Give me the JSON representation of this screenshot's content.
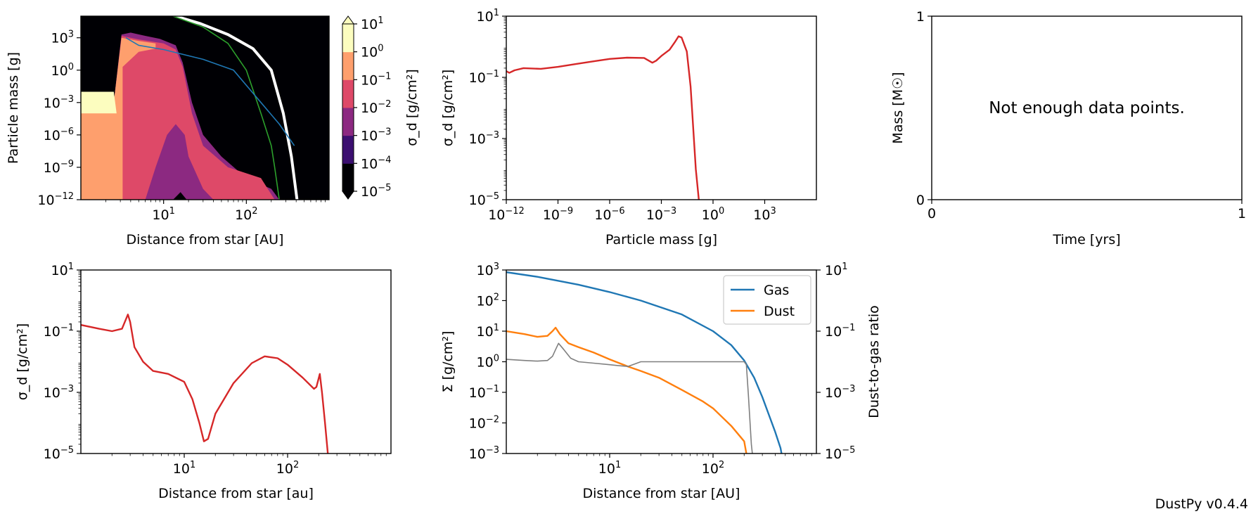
{
  "footer": "DustPy v0.4.4",
  "chart_data": [
    {
      "id": "p1",
      "type": "heatmap",
      "xlabel": "Distance from star [AU]",
      "ylabel": "Particle mass [g]",
      "xscale": "log",
      "yscale": "log",
      "xlim": [
        1.0,
        1000.0
      ],
      "ylim": [
        1e-12,
        100000.0
      ],
      "xticks": [
        10,
        100
      ],
      "yticks": [
        1e-12,
        1e-09,
        1e-06,
        0.001,
        1,
        1000
      ],
      "colorbar": {
        "label": "σ_d [g/cm²]",
        "ticks": [
          1e-05,
          0.0001,
          0.001,
          0.01,
          0.1,
          1.0,
          10.0
        ],
        "colors": [
          "#000004",
          "#3b0f70",
          "#8c2981",
          "#de4968",
          "#fe9f6d",
          "#fcfdbf"
        ],
        "extend": "both"
      },
      "overlay_lines": [
        {
          "color": "#ffffff",
          "x": [
            14,
            28,
            60,
            120,
            200,
            280,
            350,
            410
          ],
          "y": [
            100000,
            20000,
            2000,
            100,
            1,
            0.0001,
            1e-08,
            1e-12
          ]
        },
        {
          "color": "#2ca02c",
          "x": [
            13,
            30,
            60,
            100,
            150,
            200,
            220,
            250
          ],
          "y": [
            100000,
            10000,
            300,
            1,
            0.0001,
            1e-07,
            1e-09,
            1e-12
          ]
        },
        {
          "color": "#1f77b4",
          "x": [
            3.5,
            5,
            10,
            30,
            70,
            150,
            250,
            380
          ],
          "y": [
            1000,
            200,
            80,
            10,
            1,
            0.001,
            1e-05,
            1e-07
          ]
        }
      ]
    },
    {
      "id": "p2",
      "type": "line",
      "xlabel": "Particle mass [g]",
      "ylabel": "σ_d [g/cm²]",
      "xscale": "log",
      "yscale": "log",
      "xlim": [
        1e-12,
        1000000.0
      ],
      "ylim": [
        1e-05,
        10.0
      ],
      "xticks": [
        1e-12,
        1e-09,
        1e-06,
        0.001,
        1,
        1000
      ],
      "yticks": [
        1e-05,
        0.001,
        0.1,
        10
      ],
      "series": [
        {
          "color": "#d62728",
          "x": [
            1e-12,
            1.5e-12,
            3e-12,
            1e-11,
            1e-10,
            1e-09,
            1e-08,
            1e-07,
            1e-06,
            1e-05,
            0.0001,
            0.0003,
            0.0005,
            0.001,
            0.003,
            0.006,
            0.01,
            0.015,
            0.03,
            0.05,
            0.1,
            0.15
          ],
          "y": [
            0.16,
            0.14,
            0.17,
            0.2,
            0.19,
            0.22,
            0.27,
            0.33,
            0.4,
            0.44,
            0.43,
            0.3,
            0.35,
            0.5,
            0.8,
            1.4,
            2.2,
            2.0,
            0.7,
            0.05,
            0.0001,
            1e-05
          ]
        }
      ]
    },
    {
      "id": "p3",
      "type": "line",
      "xlabel": "Time [yrs]",
      "ylabel": "Mass [M☉]",
      "xlim": [
        0,
        1
      ],
      "ylim": [
        0,
        1
      ],
      "xticks": [
        0,
        1
      ],
      "yticks": [
        0,
        1
      ],
      "message": "Not enough data points."
    },
    {
      "id": "p4",
      "type": "line",
      "xlabel": "Distance from star [au]",
      "ylabel": "σ_d [g/cm²]",
      "xscale": "log",
      "yscale": "log",
      "xlim": [
        1.0,
        1000.0
      ],
      "ylim": [
        1e-05,
        10.0
      ],
      "xticks": [
        10,
        100
      ],
      "yticks": [
        1e-05,
        0.001,
        0.1,
        10
      ],
      "series": [
        {
          "color": "#d62728",
          "x": [
            1.0,
            1.5,
            2.0,
            2.5,
            2.85,
            3.0,
            3.3,
            4.0,
            5.0,
            7.0,
            10.0,
            12.0,
            14.0,
            15.5,
            17.0,
            20.0,
            30.0,
            45.0,
            60.0,
            80.0,
            100.0,
            140.0,
            180.0,
            190.0,
            205.0,
            215.0,
            230.0,
            245.0
          ],
          "y": [
            0.16,
            0.12,
            0.1,
            0.12,
            0.35,
            0.2,
            0.03,
            0.01,
            0.005,
            0.004,
            0.0022,
            0.0006,
            0.0001,
            2.5e-05,
            3e-05,
            0.0002,
            0.002,
            0.009,
            0.015,
            0.013,
            0.008,
            0.003,
            0.0013,
            0.0015,
            0.004,
            0.001,
            0.0001,
            1e-05
          ]
        }
      ]
    },
    {
      "id": "p5",
      "type": "line",
      "xlabel": "Distance from star [AU]",
      "ylabel": "Σ [g/cm²]",
      "y2label": "Dust-to-gas ratio",
      "xscale": "log",
      "yscale": "log",
      "xlim": [
        1.0,
        1000.0
      ],
      "ylim": [
        0.001,
        1000.0
      ],
      "y2lim": [
        1e-05,
        10.0
      ],
      "xticks": [
        10,
        100
      ],
      "yticks": [
        0.001,
        0.01,
        0.1,
        1,
        10,
        100,
        1000
      ],
      "y2ticks": [
        1e-05,
        0.001,
        0.1,
        10
      ],
      "legend": {
        "position": "top-right",
        "entries": [
          "Gas",
          "Dust"
        ]
      },
      "series": [
        {
          "name": "Gas",
          "color": "#1f77b4",
          "axis": "left",
          "x": [
            1.0,
            2.0,
            5.0,
            10.0,
            20.0,
            50.0,
            100.0,
            150.0,
            200.0,
            250.0,
            300.0,
            350.0,
            400.0,
            450.0,
            460.0
          ],
          "y": [
            850,
            600,
            330,
            190,
            100,
            35,
            10,
            3.5,
            1.1,
            0.3,
            0.07,
            0.017,
            0.005,
            0.0015,
            0.001
          ]
        },
        {
          "name": "Dust",
          "color": "#ff7f0e",
          "axis": "left",
          "x": [
            1.0,
            1.5,
            2.0,
            2.5,
            2.8,
            3.0,
            3.3,
            4.0,
            5.0,
            7.0,
            10.0,
            15.0,
            20.0,
            30.0,
            50.0,
            80.0,
            100.0,
            150.0,
            200.0,
            210.0
          ],
          "y": [
            10,
            8,
            6.5,
            7,
            10,
            13,
            8,
            4,
            3,
            2,
            1.2,
            0.7,
            0.5,
            0.3,
            0.12,
            0.05,
            0.03,
            0.008,
            0.0025,
            0.001
          ]
        },
        {
          "color": "#7f7f7f",
          "axis": "right",
          "x": [
            1.0,
            1.5,
            2.0,
            2.5,
            2.8,
            3.0,
            3.2,
            3.6,
            4.2,
            5.0,
            7.0,
            10.0,
            12.0,
            15.0,
            20.0,
            50.0,
            100.0,
            150.0,
            190.0,
            200.0,
            210.0,
            220.0,
            235.0,
            240.0
          ],
          "y": [
            0.012,
            0.011,
            0.0105,
            0.011,
            0.015,
            0.025,
            0.04,
            0.025,
            0.013,
            0.01,
            0.009,
            0.008,
            0.0075,
            0.007,
            0.01,
            0.01,
            0.01,
            0.01,
            0.01,
            0.01,
            0.008,
            0.0008,
            2e-05,
            1e-05
          ]
        }
      ]
    }
  ]
}
